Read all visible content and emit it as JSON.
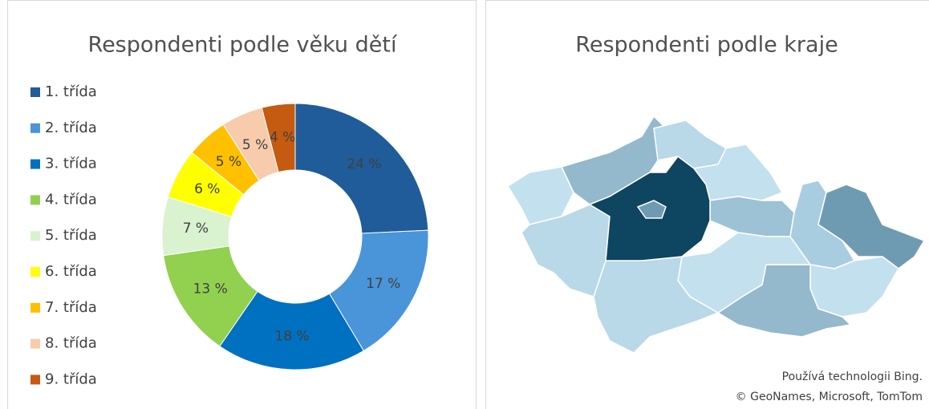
{
  "chart_data": [
    {
      "type": "pie",
      "title": "Respondenti podle věku dětí",
      "donut": true,
      "categories": [
        "1. třída",
        "2. třída",
        "3. třída",
        "4. třída",
        "5. třída",
        "6. třída",
        "7. třída",
        "8. třída",
        "9. třída"
      ],
      "values": [
        24,
        17,
        18,
        13,
        7,
        6,
        5,
        5,
        4
      ],
      "value_labels": [
        "24 %",
        "17 %",
        "18 %",
        "13 %",
        "7 %",
        "6 %",
        "5 %",
        "5 %",
        "4 %"
      ],
      "colors": [
        "#1f5c99",
        "#4a94d9",
        "#0070c0",
        "#92d050",
        "#d9f2d0",
        "#ffff00",
        "#ffc000",
        "#f8cbad",
        "#c55a11"
      ],
      "legend": "left"
    },
    {
      "type": "map",
      "title": "Respondenti podle kraje",
      "attribution": [
        "Používá technologii Bing.",
        "© GeoNames, Microsoft, TomTom"
      ]
    }
  ]
}
